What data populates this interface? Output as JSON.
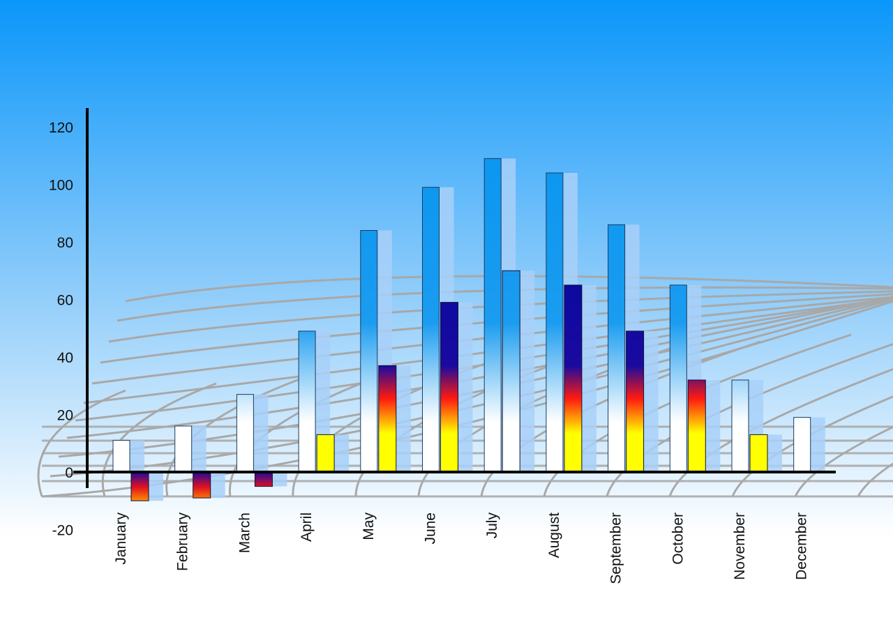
{
  "chart_data": {
    "type": "bar",
    "style": "3d-perspective",
    "title": "",
    "xlabel": "",
    "ylabel": "",
    "ylim": [
      -20,
      120
    ],
    "yticks": [
      120,
      100,
      80,
      60,
      40,
      20,
      0,
      -20
    ],
    "grid": "decorative perspective grid",
    "legend": "none",
    "categories": [
      "January",
      "February",
      "March",
      "April",
      "May",
      "June",
      "July",
      "August",
      "September",
      "October",
      "November",
      "December"
    ],
    "series": [
      {
        "values": [
          11,
          16,
          27,
          49,
          84,
          99,
          109,
          104,
          86,
          65,
          32,
          19
        ],
        "colors": [
          "#0a96f0",
          "#ffffff"
        ]
      },
      {
        "values": [
          -10,
          -9,
          -5,
          13,
          37,
          59,
          70,
          65,
          49,
          32,
          13,
          null
        ],
        "colors": [
          "#0a0aa0",
          "#ff1a10",
          "#ffff00"
        ]
      }
    ],
    "colors": {
      "background_top": "#0a96fa",
      "background_bottom": "#ffffff",
      "axis": "#000000",
      "grid": "#a8a8a8"
    }
  }
}
